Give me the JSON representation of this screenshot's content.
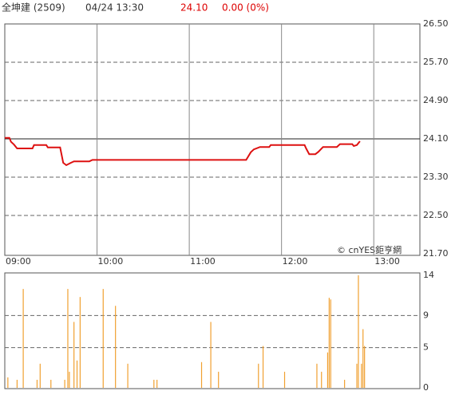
{
  "header": {
    "name": "全坤建 (2509)",
    "time": "04/24 13:30",
    "price": "24.10",
    "change": "0.00 (0%)"
  },
  "watermark": "© cnYES鉅亨網",
  "chart_data": [
    {
      "type": "line",
      "color": "#dd1111",
      "x": [
        "09:00",
        "09:03",
        "09:04",
        "09:06",
        "09:08",
        "09:18",
        "09:19",
        "09:27",
        "09:28",
        "09:36",
        "09:38",
        "09:40",
        "09:43",
        "09:45",
        "09:55",
        "09:57",
        "11:37",
        "11:40",
        "11:42",
        "11:46",
        "11:52",
        "11:53",
        "12:15",
        "12:16",
        "12:18",
        "12:22",
        "12:24",
        "12:27",
        "12:36",
        "12:38",
        "12:46",
        "12:47",
        "12:49",
        "12:51"
      ],
      "values": [
        24.12,
        24.12,
        24.04,
        23.98,
        23.9,
        23.9,
        23.97,
        23.97,
        23.92,
        23.92,
        23.6,
        23.55,
        23.6,
        23.63,
        23.63,
        23.66,
        23.66,
        23.82,
        23.88,
        23.93,
        23.93,
        23.97,
        23.97,
        23.9,
        23.78,
        23.78,
        23.83,
        23.93,
        23.93,
        23.99,
        23.99,
        23.95,
        23.97,
        24.05
      ],
      "xlim": [
        "09:00",
        "13:30"
      ],
      "xticks": [
        "09:00",
        "10:00",
        "11:00",
        "12:00",
        "13:00"
      ],
      "ylim": [
        21.7,
        26.5
      ],
      "yticks": [
        {
          "value": 21.7,
          "label": "21.70"
        },
        {
          "value": 22.5,
          "label": "22.50"
        },
        {
          "value": 23.3,
          "label": "23.30"
        },
        {
          "value": 24.1,
          "label": "24.10"
        },
        {
          "value": 24.9,
          "label": "24.90"
        },
        {
          "value": 25.7,
          "label": "25.70"
        },
        {
          "value": 26.5,
          "label": "26.50"
        }
      ],
      "reference": 24.1,
      "grid": true
    },
    {
      "type": "bar",
      "color": "#f0a030",
      "x": [
        "09:02",
        "09:08",
        "09:12",
        "09:21",
        "09:23",
        "09:30",
        "09:39",
        "09:41",
        "09:42",
        "09:45",
        "09:47",
        "09:49",
        "10:04",
        "10:12",
        "10:20",
        "10:37",
        "10:39",
        "11:08",
        "11:14",
        "11:19",
        "11:45",
        "11:48",
        "12:02",
        "12:23",
        "12:26",
        "12:30",
        "12:31",
        "12:32",
        "12:41",
        "12:49",
        "12:50",
        "12:52",
        "12:53",
        "12:54"
      ],
      "values": [
        1.3,
        1,
        12.3,
        1,
        3,
        1,
        1,
        12.3,
        2,
        8.2,
        3.4,
        11.3,
        12.3,
        10.2,
        3,
        1,
        1,
        3.2,
        8.2,
        2,
        3,
        5.2,
        2,
        3,
        2,
        4.4,
        11.2,
        11,
        1,
        3,
        14,
        3,
        7.3,
        5.2
      ],
      "xlim": [
        "09:00",
        "13:30"
      ],
      "ylim": [
        0,
        14
      ],
      "yticks": [
        0,
        5,
        9,
        14
      ],
      "grid": true
    }
  ]
}
